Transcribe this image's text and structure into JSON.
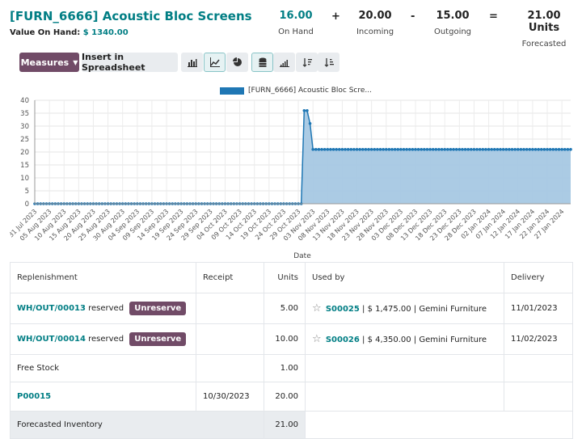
{
  "product": {
    "title": "[FURN_6666] Acoustic Bloc Screens",
    "value_label": "Value On Hand:",
    "value_amount": "$ 1340.00"
  },
  "stats": {
    "on_hand": {
      "value": "16.00",
      "label": "On Hand"
    },
    "op1": "+",
    "incoming": {
      "value": "20.00",
      "label": "Incoming"
    },
    "op2": "-",
    "outgoing": {
      "value": "15.00",
      "label": "Outgoing"
    },
    "op3": "=",
    "forecasted": {
      "value": "21.00 Units",
      "label": "Forecasted"
    }
  },
  "toolbar": {
    "measures_label": "Measures",
    "insert_label": "Insert in Spreadsheet",
    "icons": [
      "bar-chart-icon",
      "line-chart-icon",
      "pie-chart-icon",
      "database-stack-icon",
      "signal-bars-icon",
      "sort-desc-icon",
      "sort-asc-icon"
    ],
    "active_icons": [
      "line-chart-icon",
      "database-stack-icon"
    ]
  },
  "chart_data": {
    "type": "area",
    "xlabel": "Date",
    "ylabel": "",
    "ylim": [
      0,
      40
    ],
    "yticks": [
      0,
      5,
      10,
      15,
      20,
      25,
      30,
      35,
      40
    ],
    "grid": true,
    "legend_position": "top-center",
    "x_tick_labels": [
      "31 Jul 2023",
      "05 Aug 2023",
      "10 Aug 2023",
      "15 Aug 2023",
      "20 Aug 2023",
      "25 Aug 2023",
      "30 Aug 2023",
      "04 Sep 2023",
      "09 Sep 2023",
      "14 Sep 2023",
      "19 Sep 2023",
      "24 Sep 2023",
      "29 Sep 2023",
      "04 Oct 2023",
      "09 Oct 2023",
      "14 Oct 2023",
      "19 Oct 2023",
      "24 Oct 2023",
      "29 Oct 2023",
      "03 Nov 2023",
      "08 Nov 2023",
      "13 Nov 2023",
      "18 Nov 2023",
      "23 Nov 2023",
      "28 Nov 2023",
      "03 Dec 2023",
      "08 Dec 2023",
      "13 Dec 2023",
      "18 Dec 2023",
      "23 Dec 2023",
      "28 Dec 2023",
      "02 Jan 2024",
      "07 Jan 2024",
      "12 Jan 2024",
      "17 Jan 2024",
      "22 Jan 2024",
      "27 Jan 2024"
    ],
    "series": [
      {
        "name": "[FURN_6666] Acoustic Bloc Scre...",
        "color": "#1f77b4",
        "fill": "#a6c8e3",
        "x_start": "2023-07-31",
        "x_end": "2024-01-30",
        "values": [
          {
            "from": "2023-07-31",
            "to": "2023-10-30",
            "value": 0
          },
          {
            "date": "2023-10-31",
            "value": 36
          },
          {
            "date": "2023-11-01",
            "value": 36
          },
          {
            "date": "2023-11-02",
            "value": 31
          },
          {
            "from": "2023-11-03",
            "to": "2024-01-30",
            "value": 21
          }
        ]
      }
    ]
  },
  "table": {
    "headers": [
      "Replenishment",
      "Receipt",
      "Units",
      "Used by",
      "Delivery"
    ],
    "rows": [
      {
        "replenishment": "WH/OUT/00013",
        "suffix": "reserved",
        "button": "Unreserve",
        "receipt": "",
        "units": "5.00",
        "used_ref": "S00025",
        "used_rest": "| $ 1,475.00 | Gemini Furniture",
        "delivery": "11/01/2023"
      },
      {
        "replenishment": "WH/OUT/00014",
        "suffix": "reserved",
        "button": "Unreserve",
        "receipt": "",
        "units": "10.00",
        "used_ref": "S00026",
        "used_rest": "| $ 4,350.00 | Gemini Furniture",
        "delivery": "11/02/2023"
      }
    ],
    "free_stock": {
      "label": "Free Stock",
      "units": "1.00"
    },
    "po": {
      "ref": "P00015",
      "receipt": "10/30/2023",
      "units": "20.00"
    },
    "forecast": {
      "label": "Forecasted Inventory",
      "units": "21.00"
    }
  }
}
